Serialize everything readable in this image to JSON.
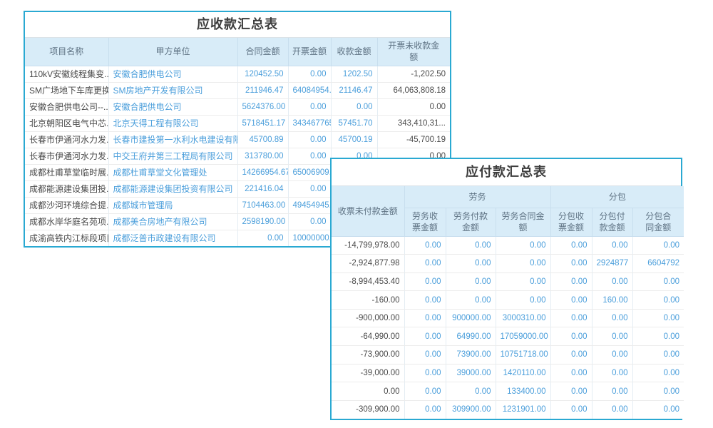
{
  "colors": {
    "panel_border": "#2aa9d2",
    "header_bg": "#d8ecf8",
    "header_text": "#5e7283",
    "value_blue": "#4a9edb",
    "text_dark": "#4a4a4a"
  },
  "receivables": {
    "title": "应收款汇总表",
    "columns": [
      "项目名称",
      "甲方单位",
      "合同金额",
      "开票金额",
      "收款金额",
      "开票未收款金\n额"
    ],
    "rows": [
      [
        "110kV安徽线程集变...",
        "安徽合肥供电公司",
        "120452.50",
        "0.00",
        "1202.50",
        "-1,202.50"
      ],
      [
        "SM广场地下车库更换...",
        "SM房地产开发有限公司",
        "211946.47",
        "64084954.6",
        "21146.47",
        "64,063,808.18"
      ],
      [
        "安徽合肥供电公司--...",
        "安徽合肥供电公司",
        "5624376.00",
        "0.00",
        "0.00",
        "0.00"
      ],
      [
        "北京朝阳区电气中芯...",
        "北京天得工程有限公司",
        "5718451.17",
        "343467765.",
        "57451.70",
        "343,410,31..."
      ],
      [
        "长春市伊通河水力发...",
        "长春市建投第一水利水电建设有限",
        "45700.89",
        "0.00",
        "45700.19",
        "-45,700.19"
      ],
      [
        "长春市伊通河水力发...",
        "中交王府井第三工程局有限公司",
        "313780.00",
        "0.00",
        "0.00",
        "0.00"
      ],
      [
        "成都杜甫草堂临时展...",
        "成都杜甫草堂文化管理处",
        "14266954.67",
        "65006909.",
        "",
        ""
      ],
      [
        "成都能源建设集团投...",
        "成都能源建设集团投资有限公司",
        "221416.04",
        "0.00",
        "",
        ""
      ],
      [
        "成都沙河环境综合提...",
        "成都城市管理局",
        "7104463.00",
        "49454945.",
        "",
        ""
      ],
      [
        "成都水岸华庭名苑项...",
        "成都美合房地产有限公司",
        "2598190.00",
        "0.00",
        "",
        ""
      ],
      [
        "成渝高铁内江标段项目",
        "成都泛普市政建设有限公司",
        "0.00",
        "10000000.",
        "",
        ""
      ]
    ]
  },
  "payables": {
    "title": "应付款汇总表",
    "main_column": "收票未付款金额",
    "groups": [
      "劳务",
      "分包"
    ],
    "sub_columns": [
      "劳务收\n票金额",
      "劳务付款\n金额",
      "劳务合同金\n额",
      "分包收\n票金额",
      "分包付\n款金额",
      "分包合\n同金额"
    ],
    "rows": [
      [
        "-14,799,978.00",
        "0.00",
        "0.00",
        "0.00",
        "0.00",
        "0.00",
        "0.00"
      ],
      [
        "-2,924,877.98",
        "0.00",
        "0.00",
        "0.00",
        "0.00",
        "2924877",
        "6604792"
      ],
      [
        "-8,994,453.40",
        "0.00",
        "0.00",
        "0.00",
        "0.00",
        "0.00",
        "0.00"
      ],
      [
        "-160.00",
        "0.00",
        "0.00",
        "0.00",
        "0.00",
        "160.00",
        "0.00"
      ],
      [
        "-900,000.00",
        "0.00",
        "900000.00",
        "3000310.00",
        "0.00",
        "0.00",
        "0.00"
      ],
      [
        "-64,990.00",
        "0.00",
        "64990.00",
        "17059000.00",
        "0.00",
        "0.00",
        "0.00"
      ],
      [
        "-73,900.00",
        "0.00",
        "73900.00",
        "10751718.00",
        "0.00",
        "0.00",
        "0.00"
      ],
      [
        "-39,000.00",
        "0.00",
        "39000.00",
        "1420110.00",
        "0.00",
        "0.00",
        "0.00"
      ],
      [
        "0.00",
        "0.00",
        "0.00",
        "133400.00",
        "0.00",
        "0.00",
        "0.00"
      ],
      [
        "-309,900.00",
        "0.00",
        "309900.00",
        "1231901.00",
        "0.00",
        "0.00",
        "0.00"
      ]
    ]
  }
}
